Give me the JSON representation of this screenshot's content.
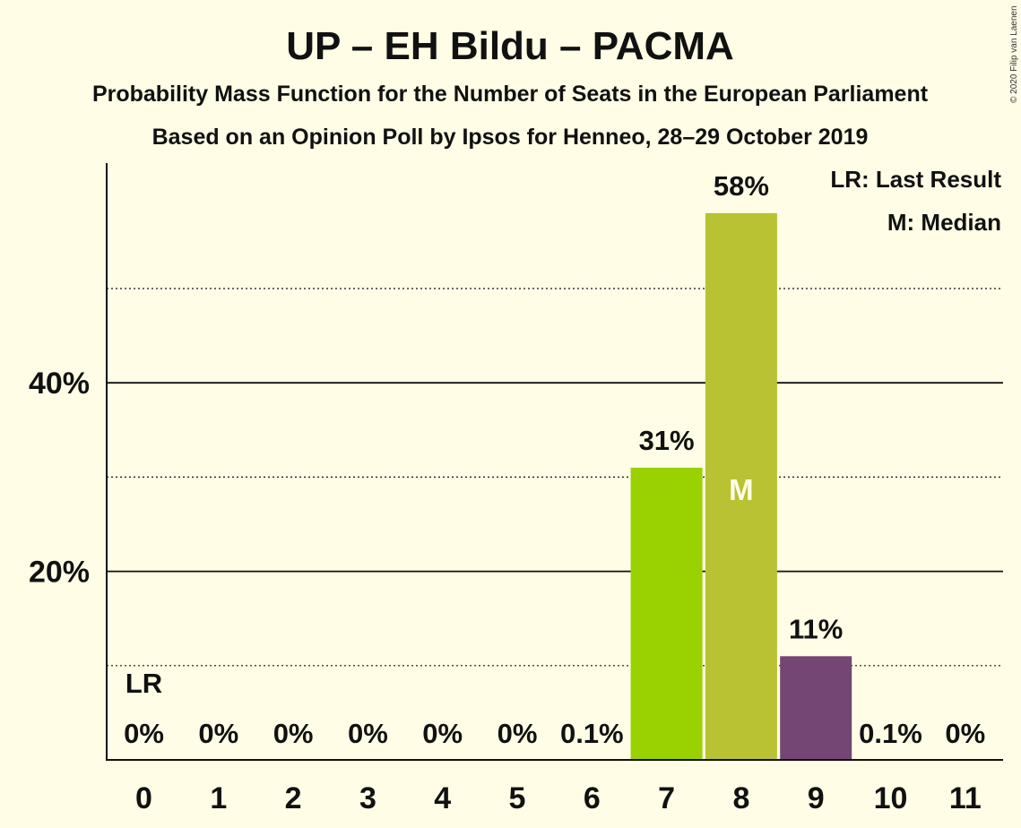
{
  "chart_data": {
    "type": "bar",
    "title": "UP – EH Bildu – PACMA",
    "subtitle_1": "Probability Mass Function for the Number of Seats in the European Parliament",
    "subtitle_2": "Based on an Opinion Poll by Ipsos for Henneo, 28–29 October 2019",
    "copyright": "© 2020 Filip van Laenen",
    "categories": [
      "0",
      "1",
      "2",
      "3",
      "4",
      "5",
      "6",
      "7",
      "8",
      "9",
      "10",
      "11"
    ],
    "values": [
      0,
      0,
      0,
      0,
      0,
      0,
      0.1,
      31,
      58,
      11,
      0.1,
      0
    ],
    "labels": [
      "0%",
      "0%",
      "0%",
      "0%",
      "0%",
      "0%",
      "0.1%",
      "31%",
      "58%",
      "11%",
      "0.1%",
      "0%"
    ],
    "bar_colors": [
      "#FFFDE6",
      "#FFFDE6",
      "#FFFDE6",
      "#FFFDE6",
      "#FFFDE6",
      "#FFFDE6",
      "#FFFDE6",
      "#9AD100",
      "#B8C233",
      "#744673",
      "#FFFDE6",
      "#FFFDE6"
    ],
    "ylim": [
      0,
      63
    ],
    "yticks": [
      {
        "value": 20,
        "label": "20%"
      },
      {
        "value": 40,
        "label": "40%"
      }
    ],
    "minor_gridlines": [
      10,
      30,
      50
    ],
    "last_result_index": 0,
    "last_result_marker": "LR",
    "median_index": 8,
    "median_marker": "M",
    "legend": [
      "LR: Last Result",
      "M: Median"
    ],
    "legend_position": "top-right"
  }
}
